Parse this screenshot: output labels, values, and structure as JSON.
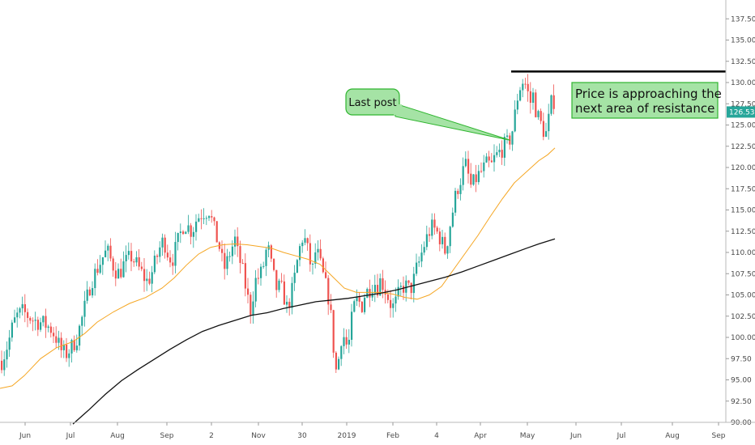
{
  "chart_data": {
    "type": "candlestick",
    "title": "",
    "xlabel": "",
    "ylabel": "",
    "ylim": [
      90,
      140
    ],
    "y_ticks": [
      "90.00",
      "92.50",
      "95.00",
      "97.50",
      "100.00",
      "102.50",
      "105.00",
      "107.50",
      "110.00",
      "112.50",
      "115.00",
      "117.50",
      "120.00",
      "122.50",
      "125.00",
      "127.50",
      "130.00",
      "132.50",
      "135.00",
      "137.50"
    ],
    "x_ticks": [
      "Jun",
      "Jul",
      "Aug",
      "Sep",
      "2",
      "Nov",
      "30",
      "2019",
      "Feb",
      "4",
      "Apr",
      "May",
      "Jun",
      "Jul",
      "Aug",
      "Sep"
    ],
    "last_price": "126.53",
    "colors": {
      "up": "#26a69a",
      "down": "#ef5350",
      "ma_fast": "#f5a623",
      "ma_slow": "#111111",
      "callout_fill": "#a5e3a5",
      "callout_border": "#2fb52f",
      "price_tag": "#26a69a"
    },
    "price_path": [
      [
        0,
        97.0
      ],
      [
        6,
        98.5
      ],
      [
        11,
        100.0
      ],
      [
        15,
        101.5
      ],
      [
        20,
        102.5
      ],
      [
        27,
        103.0
      ],
      [
        34,
        102.5
      ],
      [
        41,
        102.0
      ],
      [
        48,
        101.8
      ],
      [
        55,
        101.5
      ],
      [
        62,
        101.0
      ],
      [
        68,
        100.0
      ],
      [
        74,
        98.5
      ],
      [
        80,
        98.0
      ],
      [
        87,
        98.8
      ],
      [
        94,
        100.0
      ],
      [
        101,
        102.5
      ],
      [
        106,
        104.5
      ],
      [
        111,
        106.5
      ],
      [
        116,
        107.5
      ],
      [
        121,
        108.5
      ],
      [
        126,
        109.5
      ],
      [
        131,
        110.2
      ],
      [
        136,
        109.0
      ],
      [
        141,
        108.0
      ],
      [
        146,
        107.5
      ],
      [
        151,
        108.5
      ],
      [
        156,
        109.0
      ],
      [
        161,
        109.5
      ],
      [
        166,
        108.8
      ],
      [
        171,
        108.0
      ],
      [
        176,
        107.2
      ],
      [
        181,
        106.5
      ],
      [
        186,
        107.5
      ],
      [
        191,
        109.0
      ],
      [
        196,
        110.5
      ],
      [
        201,
        111.5
      ],
      [
        206,
        110.0
      ],
      [
        211,
        109.0
      ],
      [
        216,
        110.5
      ],
      [
        221,
        112.0
      ],
      [
        226,
        113.5
      ],
      [
        231,
        113.0
      ],
      [
        236,
        112.5
      ],
      [
        241,
        113.8
      ],
      [
        246,
        114.5
      ],
      [
        251,
        114.8
      ],
      [
        257,
        115.0
      ],
      [
        261,
        113.5
      ],
      [
        265,
        112.0
      ],
      [
        269,
        111.0
      ],
      [
        273,
        109.0
      ],
      [
        277,
        108.0
      ],
      [
        281,
        109.5
      ],
      [
        285,
        110.5
      ],
      [
        289,
        111.5
      ],
      [
        293,
        109.5
      ],
      [
        297,
        108.5
      ],
      [
        301,
        106.5
      ],
      [
        305,
        104.5
      ],
      [
        309,
        103.0
      ],
      [
        313,
        106.5
      ],
      [
        317,
        107.0
      ],
      [
        321,
        107.5
      ],
      [
        325,
        108.8
      ],
      [
        329,
        111.0
      ],
      [
        333,
        108.8
      ],
      [
        337,
        107.0
      ],
      [
        341,
        105.5
      ],
      [
        345,
        106.0
      ],
      [
        349,
        105.0
      ],
      [
        353,
        103.5
      ],
      [
        357,
        104.5
      ],
      [
        361,
        106.0
      ],
      [
        365,
        108.5
      ],
      [
        369,
        110.5
      ],
      [
        373,
        112.0
      ],
      [
        377,
        111.0
      ],
      [
        381,
        109.0
      ],
      [
        385,
        108.0
      ],
      [
        389,
        110.5
      ],
      [
        393,
        109.0
      ],
      [
        397,
        107.5
      ],
      [
        401,
        106.0
      ],
      [
        405,
        104.5
      ],
      [
        409,
        101.0
      ],
      [
        412,
        97.0
      ],
      [
        415,
        95.5
      ],
      [
        418,
        98.5
      ],
      [
        421,
        100.5
      ],
      [
        424,
        100.0
      ],
      [
        427,
        99.0
      ],
      [
        430,
        99.5
      ],
      [
        433,
        102.0
      ],
      [
        437,
        104.0
      ],
      [
        441,
        104.5
      ],
      [
        445,
        103.5
      ],
      [
        449,
        105.0
      ],
      [
        453,
        105.5
      ],
      [
        457,
        106.0
      ],
      [
        461,
        106.5
      ],
      [
        465,
        106.0
      ],
      [
        469,
        106.8
      ],
      [
        473,
        106.0
      ],
      [
        477,
        105.0
      ],
      [
        481,
        104.0
      ],
      [
        485,
        103.5
      ],
      [
        489,
        104.5
      ],
      [
        493,
        105.5
      ],
      [
        497,
        106.0
      ],
      [
        501,
        106.0
      ],
      [
        505,
        105.5
      ],
      [
        509,
        106.5
      ],
      [
        513,
        108.0
      ],
      [
        517,
        109.0
      ],
      [
        521,
        110.5
      ],
      [
        525,
        111.5
      ],
      [
        529,
        112.5
      ],
      [
        533,
        113.0
      ],
      [
        537,
        112.5
      ],
      [
        541,
        112.0
      ],
      [
        545,
        111.0
      ],
      [
        549,
        110.0
      ],
      [
        553,
        112.5
      ],
      [
        557,
        114.5
      ],
      [
        561,
        116.5
      ],
      [
        565,
        118.0
      ],
      [
        569,
        119.0
      ],
      [
        573,
        120.5
      ],
      [
        577,
        119.0
      ],
      [
        581,
        117.5
      ],
      [
        585,
        118.5
      ],
      [
        589,
        119.0
      ],
      [
        593,
        119.5
      ],
      [
        597,
        120.0
      ],
      [
        601,
        120.5
      ],
      [
        605,
        120.0
      ],
      [
        609,
        121.0
      ],
      [
        613,
        121.5
      ],
      [
        617,
        122.0
      ],
      [
        621,
        122.5
      ],
      [
        625,
        122.8
      ],
      [
        629,
        123.5
      ],
      [
        633,
        125.0
      ],
      [
        637,
        128.0
      ],
      [
        641,
        129.5
      ],
      [
        645,
        130.3
      ],
      [
        649,
        129.5
      ],
      [
        653,
        127.5
      ],
      [
        657,
        128.5
      ],
      [
        661,
        126.5
      ],
      [
        665,
        125.5
      ],
      [
        669,
        124.5
      ],
      [
        673,
        124.0
      ],
      [
        677,
        126.0
      ],
      [
        681,
        128.5
      ],
      [
        685,
        127.0
      ]
    ],
    "ma_fast": [
      [
        0,
        94.0
      ],
      [
        15,
        94.3
      ],
      [
        30,
        95.5
      ],
      [
        50,
        97.5
      ],
      [
        70,
        98.8
      ],
      [
        90,
        99.5
      ],
      [
        105,
        100.5
      ],
      [
        120,
        101.8
      ],
      [
        140,
        103.0
      ],
      [
        160,
        104.0
      ],
      [
        180,
        104.7
      ],
      [
        200,
        105.8
      ],
      [
        215,
        107.0
      ],
      [
        230,
        108.5
      ],
      [
        245,
        109.8
      ],
      [
        260,
        110.6
      ],
      [
        275,
        110.9
      ],
      [
        290,
        111.0
      ],
      [
        305,
        110.9
      ],
      [
        320,
        110.7
      ],
      [
        335,
        110.5
      ],
      [
        350,
        110.0
      ],
      [
        365,
        109.6
      ],
      [
        380,
        109.2
      ],
      [
        395,
        108.6
      ],
      [
        410,
        107.2
      ],
      [
        425,
        105.8
      ],
      [
        440,
        105.3
      ],
      [
        455,
        105.3
      ],
      [
        470,
        105.3
      ],
      [
        485,
        105.1
      ],
      [
        500,
        104.7
      ],
      [
        515,
        104.5
      ],
      [
        530,
        105.0
      ],
      [
        545,
        106.0
      ],
      [
        560,
        108.0
      ],
      [
        575,
        110.0
      ],
      [
        590,
        112.0
      ],
      [
        605,
        114.2
      ],
      [
        620,
        116.3
      ],
      [
        635,
        118.2
      ],
      [
        650,
        119.5
      ],
      [
        665,
        120.8
      ],
      [
        676,
        121.5
      ],
      [
        685,
        122.3
      ]
    ],
    "ma_slow": [
      [
        90,
        89.8
      ],
      [
        110,
        91.5
      ],
      [
        130,
        93.3
      ],
      [
        150,
        94.9
      ],
      [
        170,
        96.2
      ],
      [
        190,
        97.4
      ],
      [
        210,
        98.6
      ],
      [
        230,
        99.7
      ],
      [
        250,
        100.7
      ],
      [
        270,
        101.4
      ],
      [
        290,
        102.0
      ],
      [
        310,
        102.6
      ],
      [
        330,
        102.9
      ],
      [
        350,
        103.4
      ],
      [
        370,
        103.8
      ],
      [
        390,
        104.2
      ],
      [
        410,
        104.4
      ],
      [
        430,
        104.6
      ],
      [
        450,
        104.9
      ],
      [
        470,
        105.2
      ],
      [
        490,
        105.6
      ],
      [
        510,
        106.1
      ],
      [
        530,
        106.6
      ],
      [
        550,
        107.1
      ],
      [
        570,
        107.7
      ],
      [
        590,
        108.4
      ],
      [
        610,
        109.1
      ],
      [
        630,
        109.8
      ],
      [
        650,
        110.5
      ],
      [
        665,
        111.0
      ],
      [
        685,
        111.6
      ]
    ],
    "resistance": {
      "value": 131.3,
      "x_start": 631,
      "x_end": 896
    },
    "annotations": [
      {
        "id": "last_post",
        "text": "Last post",
        "pointer_x": 630,
        "pointer_value": 123.2
      },
      {
        "id": "resistance_note",
        "lines": [
          "Price is approaching the",
          "next area of resistance"
        ]
      }
    ]
  }
}
